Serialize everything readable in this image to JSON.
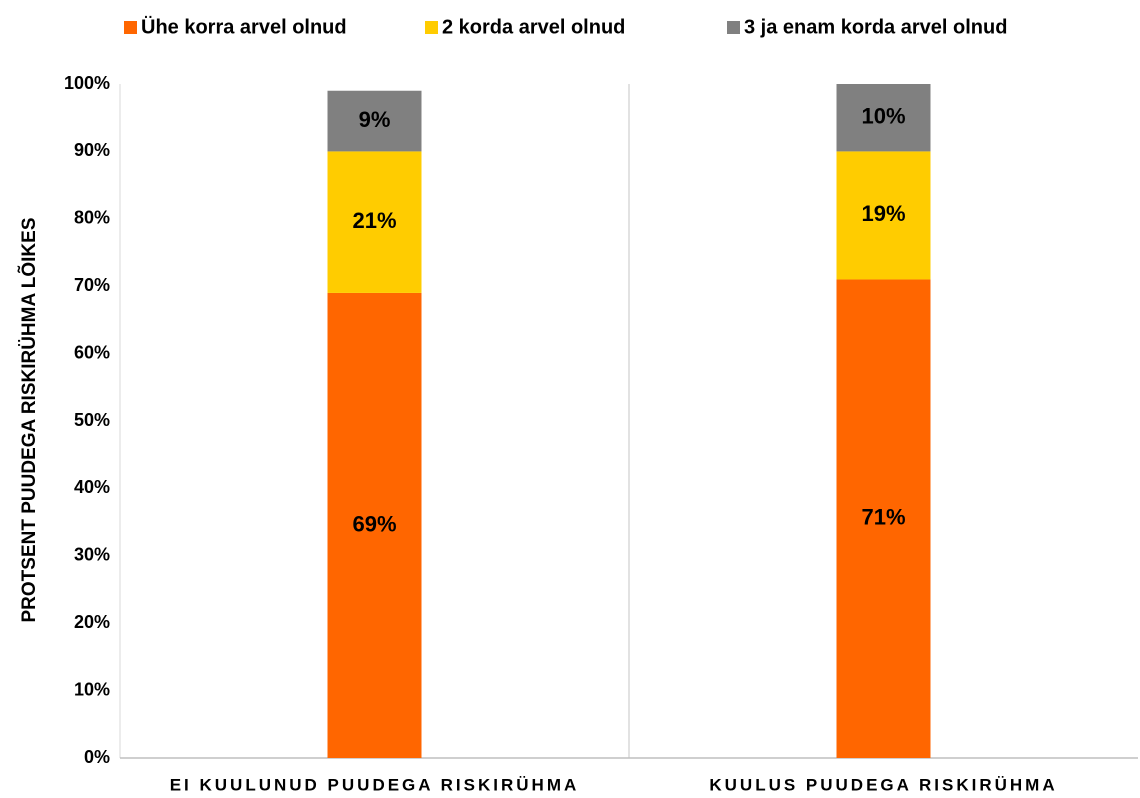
{
  "chart_data": {
    "type": "stacked_bar",
    "ylabel": "PROTSENT PUUDEGA RISKIRÜHMA LÕIKES",
    "categories": [
      "EI KUULUNUD PUUDEGA RISKIRÜHMA",
      "KUULUS PUUDEGA RISKIRÜHMA"
    ],
    "series": [
      {
        "name": "Ühe korra arvel olnud",
        "color": "#ff6600",
        "values": [
          69,
          71
        ],
        "value_labels": [
          "69%",
          "71%"
        ]
      },
      {
        "name": "2 korda arvel olnud",
        "color": "#ffcc00",
        "values": [
          21,
          19
        ],
        "value_labels": [
          "21%",
          "19%"
        ]
      },
      {
        "name": "3 ja enam korda arvel olnud",
        "color": "#808080",
        "values": [
          9,
          10
        ],
        "value_labels": [
          "9%",
          "10%"
        ]
      }
    ],
    "ylim": [
      0,
      100
    ],
    "yticks": [
      {
        "value": 0,
        "label": "0%"
      },
      {
        "value": 10,
        "label": "10%"
      },
      {
        "value": 20,
        "label": "20%"
      },
      {
        "value": 30,
        "label": "30%"
      },
      {
        "value": 40,
        "label": "40%"
      },
      {
        "value": 50,
        "label": "50%"
      },
      {
        "value": 60,
        "label": "60%"
      },
      {
        "value": 70,
        "label": "70%"
      },
      {
        "value": 80,
        "label": "80%"
      },
      {
        "value": 90,
        "label": "90%"
      },
      {
        "value": 100,
        "label": "100%"
      }
    ],
    "legend": "top"
  }
}
